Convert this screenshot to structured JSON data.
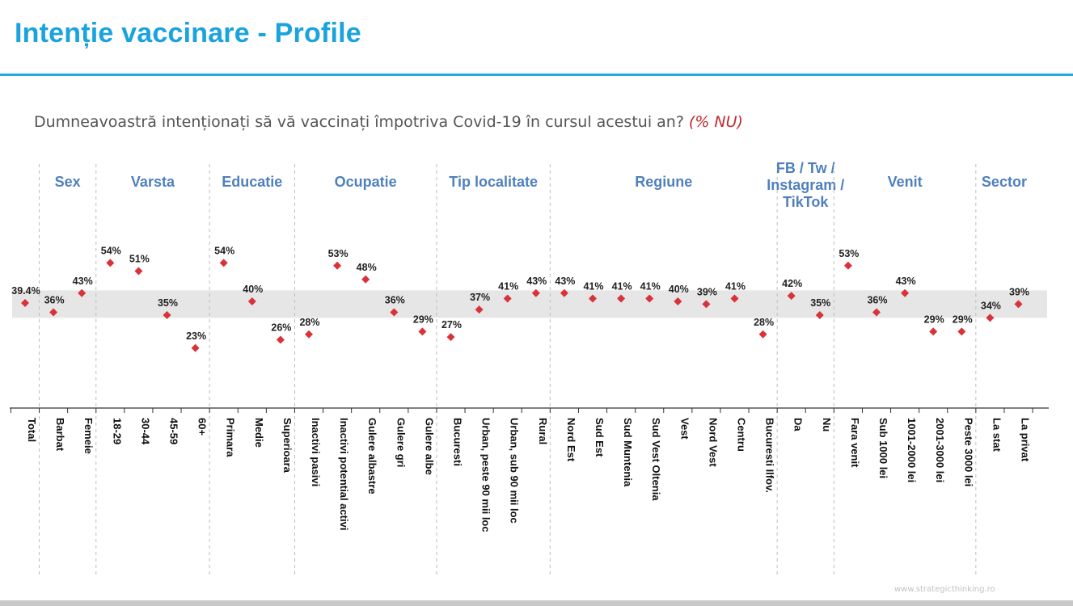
{
  "title": "Intenție vaccinare - Profile",
  "question": {
    "text": "Dumneavoastră intenționați să vă vaccinați împotriva Covid-19 în cursul acestui an?",
    "highlight": "(% NU)"
  },
  "watermark": "www.strategicthinking.ro",
  "colors": {
    "title": "#1aa3dd",
    "rule": "#29a8e0",
    "group_header": "#4f80bd",
    "marker": "#d9323a",
    "band": "#e6e6e6"
  },
  "chart_data": {
    "type": "scatter",
    "marker": "diamond",
    "unit": "%",
    "reference_band": [
      34,
      44
    ],
    "ylim": [
      0,
      70
    ],
    "groups": [
      {
        "label": "",
        "categories": [
          "Total"
        ],
        "values": [
          39.4
        ],
        "labels": [
          "39.4%"
        ]
      },
      {
        "label": "Sex",
        "categories": [
          "Barbat",
          "Femeie"
        ],
        "values": [
          36,
          43
        ],
        "labels": [
          "36%",
          "43%"
        ]
      },
      {
        "label": "Varsta",
        "categories": [
          "18-29",
          "30-44",
          "45-59",
          "60+"
        ],
        "values": [
          54,
          51,
          35,
          23
        ],
        "labels": [
          "54%",
          "51%",
          "35%",
          "23%"
        ]
      },
      {
        "label": "Educatie",
        "categories": [
          "Primara",
          "Medie",
          "Superioara"
        ],
        "values": [
          54,
          40,
          26
        ],
        "labels": [
          "54%",
          "40%",
          "26%"
        ]
      },
      {
        "label": "Ocupatie",
        "categories": [
          "Inactivi pasivi",
          "Inactivi potential activi",
          "Gulere albastre",
          "Gulere gri",
          "Gulere albe"
        ],
        "values": [
          28,
          53,
          48,
          36,
          29
        ],
        "labels": [
          "28%",
          "53%",
          "48%",
          "36%",
          "29%"
        ]
      },
      {
        "label": "Tip localitate",
        "categories": [
          "Bucuresti",
          "Urban, peste 90 mii loc",
          "Urban, sub 90 mii loc",
          "Rural"
        ],
        "values": [
          27,
          37,
          41,
          43
        ],
        "labels": [
          "27%",
          "37%",
          "41%",
          "43%"
        ]
      },
      {
        "label": "Regiune",
        "categories": [
          "Nord Est",
          "Sud Est",
          "Sud Muntenia",
          "Sud Vest Oltenia",
          "Vest",
          "Nord Vest",
          "Centru",
          "Bucuresti Ilfov."
        ],
        "values": [
          43,
          41,
          41,
          41,
          40,
          39,
          41,
          28
        ],
        "labels": [
          "43%",
          "41%",
          "41%",
          "41%",
          "40%",
          "39%",
          "41%",
          "28%"
        ]
      },
      {
        "label": "FB / Tw / Instagram / TikTok",
        "label_lines": [
          "FB / Tw /",
          "Instagram /",
          "TikTok"
        ],
        "categories": [
          "Da",
          "Nu"
        ],
        "values": [
          42,
          35
        ],
        "labels": [
          "42%",
          "35%"
        ]
      },
      {
        "label": "Venit",
        "categories": [
          "Fara venit",
          "Sub 1000 lei",
          "1001-2000 lei",
          "2001-3000 lei",
          "Peste 3000 lei"
        ],
        "values": [
          53,
          36,
          43,
          29,
          29
        ],
        "labels": [
          "53%",
          "36%",
          "43%",
          "29%",
          "29%"
        ]
      },
      {
        "label": "Sector",
        "categories": [
          "La stat",
          "La privat"
        ],
        "values": [
          34,
          39
        ],
        "labels": [
          "34%",
          "39%"
        ]
      }
    ]
  }
}
